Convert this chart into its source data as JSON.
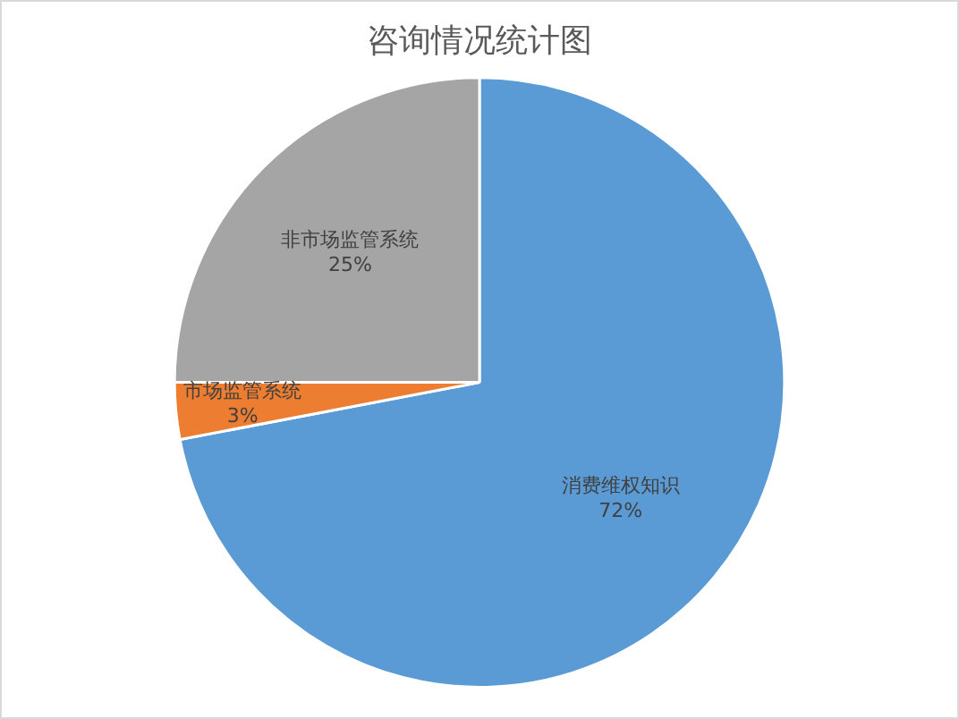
{
  "chart_data": {
    "type": "pie",
    "title": "咨询情况统计图",
    "categories": [
      "消费维权知识",
      "市场监管系统",
      "非市场监管系统"
    ],
    "values": [
      72,
      3,
      25
    ],
    "value_labels": [
      "72%",
      "3%",
      "25%"
    ],
    "colors": [
      "#5b9bd5",
      "#ed7d31",
      "#a5a5a5"
    ],
    "legend": false
  }
}
